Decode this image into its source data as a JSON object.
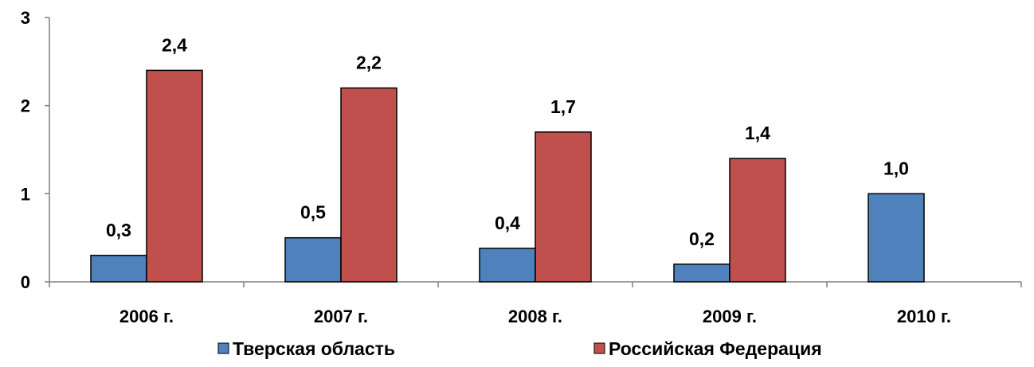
{
  "chart_data": {
    "type": "bar",
    "categories": [
      "2006 г.",
      "2007 г.",
      "2008 г.",
      "2009 г.",
      "2010 г."
    ],
    "series": [
      {
        "name": "Тверская область",
        "color": "#4f81bd",
        "values": [
          0.3,
          0.5,
          0.38,
          0.2,
          1.0
        ],
        "labels": [
          "0,3",
          "0,5",
          "0,4",
          "0,2",
          "1,0"
        ]
      },
      {
        "name": "Российская Федерация",
        "color": "#c0504d",
        "values": [
          2.4,
          2.2,
          1.7,
          1.4,
          null
        ],
        "labels": [
          "2,4",
          "2,2",
          "1,7",
          "1,4",
          ""
        ]
      }
    ],
    "ylim": [
      0,
      3
    ],
    "yticks": [
      0,
      1,
      2,
      3
    ],
    "ytick_labels": [
      "0",
      "1",
      "2",
      "3"
    ],
    "title": "",
    "xlabel": "",
    "ylabel": "",
    "grid": false,
    "legend": "bottom"
  }
}
